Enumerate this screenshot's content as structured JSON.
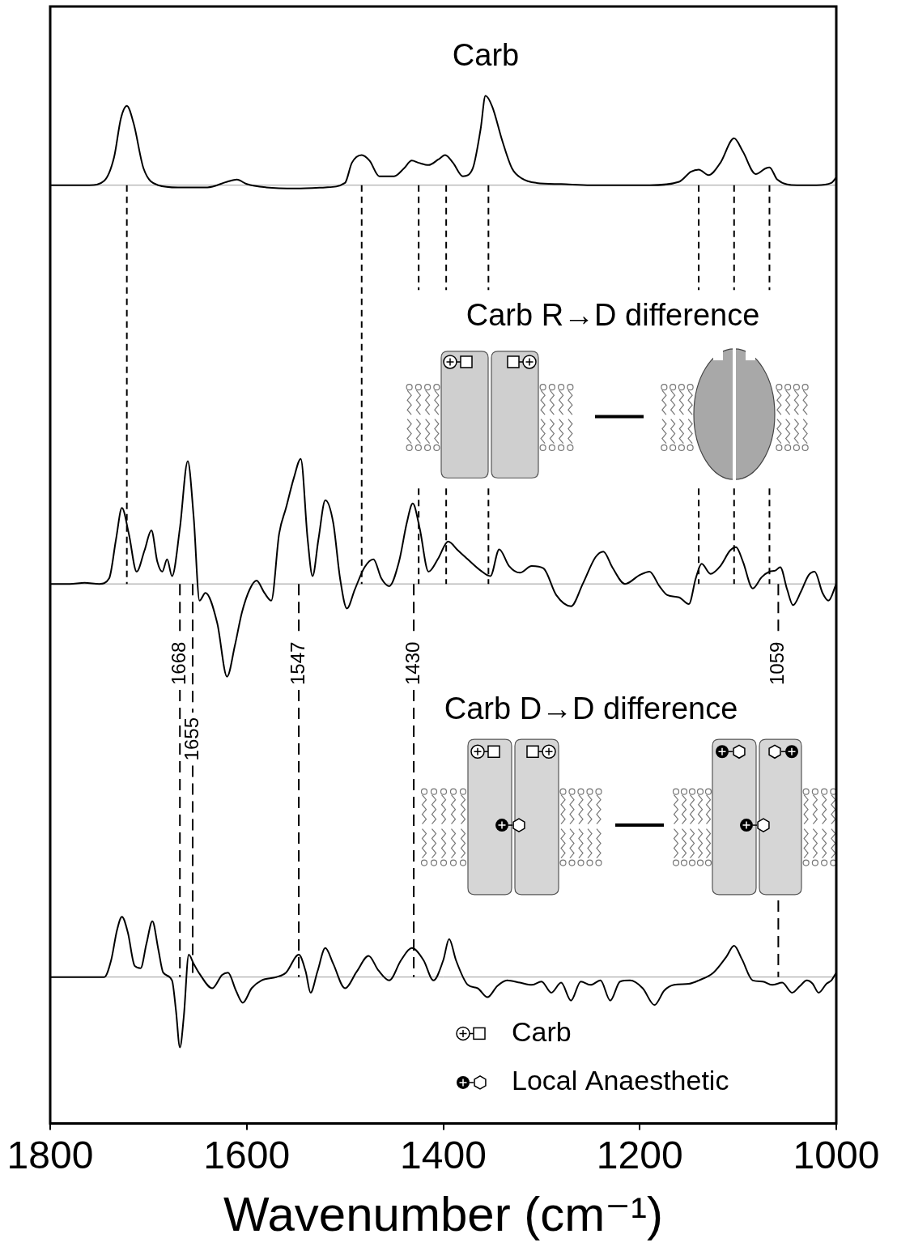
{
  "chart_data": {
    "type": "line",
    "x_title": "Wavenumber (cm⁻¹)",
    "xlim": [
      1800,
      1000
    ],
    "xticks": [
      1800,
      1600,
      1400,
      1200,
      1000
    ],
    "ylim": [
      0,
      100
    ],
    "tick_labels": "x",
    "grid": false,
    "series": [
      {
        "name": "Carb",
        "color": "#000000",
        "baseline": 84.0,
        "x": [
          1800,
          1760,
          1745,
          1735,
          1728,
          1722,
          1715,
          1705,
          1690,
          1670,
          1640,
          1620,
          1610,
          1600,
          1580,
          1550,
          1520,
          1500,
          1493,
          1483,
          1475,
          1465,
          1450,
          1440,
          1432,
          1425,
          1415,
          1405,
          1398,
          1390,
          1380,
          1370,
          1362,
          1357,
          1350,
          1340,
          1330,
          1320,
          1305,
          1280,
          1250,
          1220,
          1190,
          1160,
          1148,
          1140,
          1130,
          1118,
          1104,
          1095,
          1082,
          1072,
          1068,
          1060,
          1040,
          1020,
          1005,
          1000
        ],
        "values": [
          84.0,
          84.0,
          84.4,
          86.5,
          90.0,
          91.1,
          89.5,
          85.5,
          84.0,
          83.8,
          83.8,
          84.3,
          84.5,
          84.1,
          83.8,
          83.7,
          83.8,
          84.2,
          86.0,
          86.7,
          86.2,
          84.8,
          84.8,
          85.5,
          86.2,
          86.0,
          85.8,
          86.3,
          86.7,
          86.0,
          84.8,
          85.5,
          89.0,
          92.0,
          91.0,
          88.0,
          85.5,
          84.6,
          84.2,
          84.1,
          84.0,
          84.0,
          84.0,
          84.3,
          85.2,
          85.4,
          84.9,
          86.0,
          88.2,
          87.0,
          85.0,
          85.5,
          85.6,
          84.5,
          84.0,
          84.0,
          84.2,
          84.7
        ],
        "peak_lines": [
          1722,
          1483,
          1425,
          1397,
          1354,
          1140,
          1104,
          1068
        ]
      },
      {
        "name": "Carb R→D difference",
        "color": "#000000",
        "baseline": 48.3,
        "x": [
          1800,
          1780,
          1765,
          1750,
          1740,
          1733,
          1727,
          1720,
          1712,
          1704,
          1697,
          1691,
          1686,
          1681,
          1676,
          1668,
          1660,
          1654,
          1648,
          1642,
          1630,
          1620,
          1612,
          1605,
          1597,
          1590,
          1582,
          1575,
          1567,
          1560,
          1552,
          1545,
          1538,
          1533,
          1527,
          1520,
          1512,
          1505,
          1498,
          1490,
          1480,
          1471,
          1463,
          1455,
          1445,
          1437,
          1431,
          1424,
          1415,
          1405,
          1395,
          1385,
          1375,
          1362,
          1352,
          1343,
          1333,
          1322,
          1310,
          1298,
          1285,
          1270,
          1258,
          1245,
          1237,
          1228,
          1215,
          1200,
          1190,
          1180,
          1172,
          1160,
          1150,
          1143,
          1137,
          1128,
          1118,
          1108,
          1102,
          1095,
          1085,
          1076,
          1068,
          1062,
          1057,
          1050,
          1044,
          1036,
          1028,
          1022,
          1014,
          1008,
          1000
        ],
        "values": [
          48.3,
          48.3,
          48.4,
          48.3,
          48.8,
          52.3,
          55.1,
          52.8,
          49.4,
          51.3,
          53.1,
          50.3,
          49.4,
          50.5,
          49.0,
          53.3,
          59.3,
          54.3,
          46.8,
          47.5,
          44.8,
          40.0,
          42.8,
          45.7,
          47.8,
          48.6,
          47.5,
          46.8,
          52.8,
          55.1,
          57.8,
          59.5,
          52.3,
          49.0,
          52.3,
          55.8,
          53.8,
          48.8,
          46.1,
          47.8,
          49.8,
          50.5,
          48.8,
          48.1,
          50.3,
          53.8,
          55.5,
          53.3,
          49.4,
          50.6,
          52.1,
          51.3,
          50.5,
          49.5,
          49.0,
          51.4,
          49.9,
          49.3,
          49.9,
          49.7,
          47.3,
          46.3,
          48.3,
          50.7,
          51.2,
          49.8,
          48.3,
          49.1,
          49.4,
          48.1,
          47.3,
          47.1,
          46.5,
          48.8,
          50.1,
          49.2,
          49.9,
          51.3,
          51.6,
          50.3,
          47.9,
          48.9,
          49.4,
          49.5,
          49.8,
          47.8,
          46.4,
          47.6,
          49.1,
          49.4,
          47.5,
          46.8,
          48.3
        ],
        "marked_peaks": [
          1668,
          1655,
          1547,
          1430,
          1059
        ]
      },
      {
        "name": "Carb D→D difference",
        "color": "#000000",
        "baseline": 13.1,
        "x": [
          1800,
          1760,
          1745,
          1738,
          1732,
          1727,
          1721,
          1714,
          1708,
          1702,
          1696,
          1690,
          1685,
          1676,
          1672,
          1668,
          1664,
          1659,
          1654,
          1648,
          1635,
          1625,
          1619,
          1611,
          1604,
          1595,
          1585,
          1570,
          1560,
          1547,
          1540,
          1535,
          1528,
          1520,
          1512,
          1500,
          1488,
          1476,
          1466,
          1455,
          1443,
          1432,
          1420,
          1410,
          1400,
          1394,
          1387,
          1375,
          1365,
          1355,
          1345,
          1335,
          1322,
          1310,
          1300,
          1290,
          1280,
          1270,
          1260,
          1250,
          1240,
          1230,
          1220,
          1210,
          1197,
          1185,
          1175,
          1165,
          1150,
          1140,
          1125,
          1112,
          1104,
          1096,
          1085,
          1075,
          1065,
          1055,
          1045,
          1037,
          1030,
          1024,
          1018,
          1010,
          1005,
          1000
        ],
        "values": [
          13.1,
          13.1,
          13.1,
          14.6,
          17.3,
          18.5,
          17.1,
          14.1,
          13.9,
          16.1,
          18.1,
          15.6,
          13.5,
          12.8,
          10.1,
          6.8,
          9.6,
          15.1,
          14.3,
          13.4,
          12.1,
          13.3,
          13.5,
          11.9,
          10.8,
          12.1,
          12.8,
          13.1,
          13.5,
          15.1,
          13.6,
          11.7,
          13.6,
          15.7,
          14.3,
          12.1,
          13.6,
          15.0,
          13.7,
          12.8,
          14.6,
          15.7,
          14.6,
          12.8,
          14.6,
          16.5,
          14.6,
          12.4,
          12.1,
          11.3,
          12.3,
          12.8,
          12.6,
          12.4,
          12.7,
          11.7,
          12.6,
          11.0,
          12.7,
          12.4,
          12.8,
          11.0,
          12.7,
          12.8,
          12.1,
          10.6,
          11.9,
          12.4,
          12.5,
          12.8,
          13.5,
          14.9,
          15.9,
          14.7,
          12.8,
          12.7,
          12.4,
          12.6,
          11.7,
          12.3,
          12.8,
          12.5,
          11.7,
          12.5,
          12.8,
          13.5
        ]
      }
    ],
    "key_labels": [
      "Carb",
      "Local Anaesthetic"
    ]
  }
}
